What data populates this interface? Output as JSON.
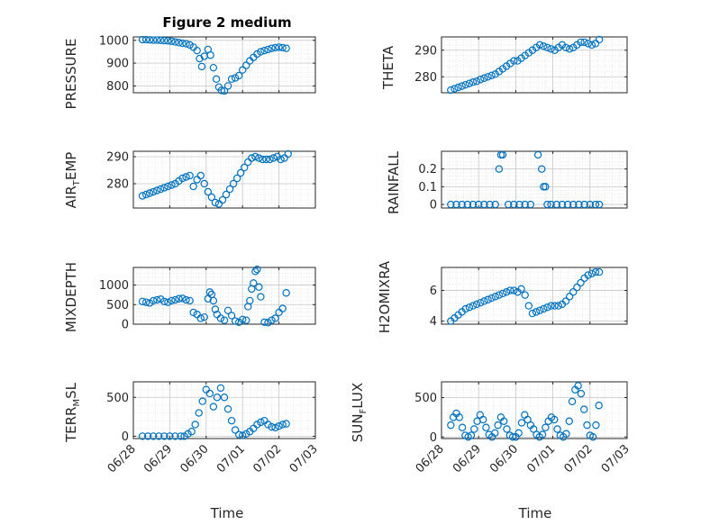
{
  "figure": {
    "title": "Figure 2 medium",
    "xlabel_left": "Time",
    "xlabel_right": "Time",
    "marker_color": "#0072BD"
  },
  "chart_data": [
    {
      "id": "pressure",
      "type": "scatter",
      "title": "Figure 2 medium",
      "ylabel": "PRESSURE",
      "xlim": [
        0,
        5
      ],
      "ylim": [
        770,
        1015
      ],
      "yticks": [
        800,
        900,
        1000
      ],
      "xticks": [
        "06/28",
        "06/29",
        "06/30",
        "07/01",
        "07/02",
        "07/03"
      ],
      "x": [
        0.25,
        0.35,
        0.45,
        0.55,
        0.65,
        0.75,
        0.85,
        0.95,
        1.05,
        1.15,
        1.25,
        1.35,
        1.45,
        1.55,
        1.65,
        1.75,
        1.82,
        1.88,
        1.95,
        2.05,
        2.12,
        2.2,
        2.28,
        2.35,
        2.42,
        2.5,
        2.6,
        2.7,
        2.8,
        2.9,
        3.0,
        3.1,
        3.2,
        3.3,
        3.4,
        3.5,
        3.6,
        3.7,
        3.8,
        3.9,
        4.0,
        4.1,
        4.2
      ],
      "y": [
        1003,
        1003,
        1002,
        1001,
        1001,
        1000,
        999,
        998,
        996,
        993,
        990,
        987,
        985,
        980,
        970,
        955,
        920,
        885,
        930,
        960,
        935,
        880,
        830,
        795,
        780,
        778,
        800,
        830,
        835,
        845,
        870,
        890,
        910,
        925,
        940,
        950,
        955,
        960,
        965,
        968,
        970,
        968,
        965
      ]
    },
    {
      "id": "theta",
      "type": "scatter",
      "ylabel": "THETA",
      "xlim": [
        0,
        5
      ],
      "ylim": [
        274,
        295
      ],
      "yticks": [
        280,
        290
      ],
      "xticks": [
        "06/28",
        "06/29",
        "06/30",
        "07/01",
        "07/02",
        "07/03"
      ],
      "x": [
        0.25,
        0.35,
        0.45,
        0.55,
        0.65,
        0.75,
        0.85,
        0.95,
        1.05,
        1.15,
        1.25,
        1.35,
        1.45,
        1.55,
        1.65,
        1.75,
        1.85,
        1.95,
        2.05,
        2.15,
        2.25,
        2.35,
        2.45,
        2.55,
        2.65,
        2.75,
        2.85,
        2.95,
        3.05,
        3.15,
        3.25,
        3.35,
        3.45,
        3.55,
        3.65,
        3.75,
        3.85,
        3.95,
        4.05,
        4.15,
        4.25
      ],
      "y": [
        275,
        275.5,
        276,
        276.5,
        277,
        277.5,
        278,
        278.3,
        279,
        279.5,
        280,
        280.5,
        281,
        282,
        283,
        284,
        285,
        286,
        286,
        287,
        288,
        289,
        290,
        291,
        292,
        291.5,
        291,
        290.5,
        290,
        291,
        292,
        291,
        290.5,
        291,
        292,
        293,
        293,
        292.5,
        292,
        292.5,
        294
      ]
    },
    {
      "id": "air_temp",
      "type": "scatter",
      "ylabel_main": "AIR",
      "ylabel_sub": "T",
      "ylabel_rest": "EMP",
      "xlim": [
        0,
        5
      ],
      "ylim": [
        271,
        292
      ],
      "yticks": [
        280,
        290
      ],
      "xticks": [
        "06/28",
        "06/29",
        "06/30",
        "07/01",
        "07/02",
        "07/03"
      ],
      "x": [
        0.25,
        0.35,
        0.45,
        0.55,
        0.65,
        0.75,
        0.85,
        0.95,
        1.05,
        1.15,
        1.25,
        1.35,
        1.45,
        1.55,
        1.65,
        1.75,
        1.85,
        1.95,
        2.05,
        2.15,
        2.25,
        2.35,
        2.45,
        2.55,
        2.65,
        2.75,
        2.85,
        2.95,
        3.05,
        3.15,
        3.25,
        3.35,
        3.45,
        3.55,
        3.65,
        3.75,
        3.85,
        3.95,
        4.05,
        4.15,
        4.25
      ],
      "y": [
        275.5,
        276,
        276.5,
        277,
        277.5,
        278,
        278.5,
        279,
        279.5,
        280,
        281,
        282,
        282.5,
        283,
        279,
        281.5,
        283,
        280,
        277,
        275,
        273,
        272.5,
        274,
        276,
        278,
        280,
        282,
        284,
        286,
        288,
        289.5,
        290,
        289.5,
        289,
        289,
        289,
        289.5,
        290,
        289,
        289.5,
        291
      ]
    },
    {
      "id": "rainfall",
      "type": "scatter",
      "ylabel": "RAINFALL",
      "xlim": [
        0,
        5
      ],
      "ylim": [
        -0.02,
        0.3
      ],
      "yticks": [
        0,
        0.1,
        0.2
      ],
      "xticks": [
        "06/28",
        "06/29",
        "06/30",
        "07/01",
        "07/02",
        "07/03"
      ],
      "x": [
        0.25,
        0.4,
        0.55,
        0.7,
        0.85,
        1.0,
        1.15,
        1.3,
        1.45,
        1.55,
        1.6,
        1.65,
        1.8,
        1.95,
        2.1,
        2.25,
        2.4,
        2.6,
        2.7,
        2.75,
        2.8,
        2.85,
        2.95,
        3.1,
        3.25,
        3.4,
        3.55,
        3.7,
        3.85,
        4.0,
        4.15,
        4.25
      ],
      "y": [
        0,
        0,
        0,
        0,
        0,
        0,
        0,
        0,
        0,
        0.2,
        0.28,
        0.28,
        0,
        0,
        0,
        0,
        0,
        0.28,
        0.2,
        0.1,
        0.1,
        0,
        0,
        0,
        0,
        0,
        0,
        0,
        0,
        0,
        0,
        0
      ]
    },
    {
      "id": "mixdepth",
      "type": "scatter",
      "ylabel": "MIXDEPTH",
      "xlim": [
        0,
        5
      ],
      "ylim": [
        0,
        1450
      ],
      "yticks": [
        0,
        500,
        1000
      ],
      "xticks": [
        "06/28",
        "06/29",
        "06/30",
        "07/01",
        "07/02",
        "07/03"
      ],
      "x": [
        0.25,
        0.35,
        0.45,
        0.55,
        0.65,
        0.75,
        0.85,
        0.95,
        1.05,
        1.15,
        1.25,
        1.35,
        1.45,
        1.55,
        1.65,
        1.75,
        1.85,
        1.95,
        2.05,
        2.1,
        2.15,
        2.2,
        2.25,
        2.3,
        2.4,
        2.5,
        2.6,
        2.7,
        2.8,
        2.9,
        3.0,
        3.1,
        3.15,
        3.2,
        3.25,
        3.3,
        3.35,
        3.4,
        3.45,
        3.5,
        3.6,
        3.7,
        3.8,
        3.9,
        4.0,
        4.1,
        4.2
      ],
      "y": [
        580,
        560,
        540,
        600,
        620,
        640,
        580,
        560,
        600,
        620,
        650,
        660,
        620,
        600,
        300,
        250,
        150,
        180,
        650,
        820,
        760,
        600,
        380,
        250,
        150,
        100,
        350,
        220,
        80,
        50,
        120,
        100,
        450,
        600,
        900,
        1050,
        1350,
        1400,
        950,
        700,
        50,
        40,
        100,
        150,
        300,
        400,
        800
      ]
    },
    {
      "id": "h2omixra",
      "type": "scatter",
      "ylabel": "H2OMIXRA",
      "xlim": [
        0,
        5
      ],
      "ylim": [
        3.8,
        7.5
      ],
      "yticks": [
        4,
        6
      ],
      "xticks": [
        "06/28",
        "06/29",
        "06/30",
        "07/01",
        "07/02",
        "07/03"
      ],
      "x": [
        0.25,
        0.35,
        0.45,
        0.55,
        0.65,
        0.75,
        0.85,
        0.95,
        1.05,
        1.15,
        1.25,
        1.35,
        1.45,
        1.55,
        1.65,
        1.75,
        1.85,
        1.95,
        2.05,
        2.15,
        2.25,
        2.35,
        2.45,
        2.55,
        2.65,
        2.75,
        2.85,
        2.95,
        3.05,
        3.15,
        3.25,
        3.35,
        3.45,
        3.55,
        3.65,
        3.75,
        3.85,
        3.95,
        4.05,
        4.15,
        4.25
      ],
      "y": [
        4.0,
        4.2,
        4.4,
        4.6,
        4.8,
        4.9,
        5.0,
        5.1,
        5.2,
        5.3,
        5.4,
        5.5,
        5.6,
        5.7,
        5.8,
        5.9,
        6.0,
        6.0,
        5.9,
        6.1,
        5.7,
        5.0,
        4.5,
        4.6,
        4.7,
        4.8,
        4.9,
        5.0,
        5.0,
        5.0,
        5.1,
        5.3,
        5.6,
        5.9,
        6.2,
        6.5,
        6.8,
        7.0,
        7.1,
        7.2,
        7.2
      ]
    },
    {
      "id": "terr_msl",
      "type": "scatter",
      "ylabel_main": "TERR",
      "ylabel_sub": "M",
      "ylabel_rest": "SL",
      "xlim": [
        0,
        5
      ],
      "ylim": [
        -30,
        700
      ],
      "yticks": [
        0,
        500
      ],
      "xticks": [
        "06/28",
        "06/29",
        "06/30",
        "07/01",
        "07/02",
        "07/03"
      ],
      "x": [
        0.25,
        0.4,
        0.55,
        0.7,
        0.85,
        1.0,
        1.15,
        1.3,
        1.4,
        1.5,
        1.6,
        1.7,
        1.8,
        1.9,
        2.0,
        2.1,
        2.2,
        2.3,
        2.4,
        2.5,
        2.6,
        2.7,
        2.8,
        2.9,
        3.0,
        3.1,
        3.2,
        3.3,
        3.4,
        3.5,
        3.6,
        3.7,
        3.8,
        3.9,
        4.0,
        4.1,
        4.2
      ],
      "y": [
        0,
        0,
        0,
        0,
        0,
        0,
        0,
        0,
        0,
        30,
        60,
        150,
        300,
        450,
        600,
        550,
        380,
        500,
        620,
        500,
        350,
        200,
        80,
        20,
        10,
        30,
        60,
        100,
        150,
        180,
        200,
        150,
        120,
        110,
        130,
        150,
        160
      ]
    },
    {
      "id": "sun_flux",
      "type": "scatter",
      "ylabel_main": "SUN",
      "ylabel_sub": "F",
      "ylabel_rest": "LUX",
      "xlim": [
        0,
        5
      ],
      "ylim": [
        -20,
        700
      ],
      "yticks": [
        0,
        500
      ],
      "xticks": [
        "06/28",
        "06/29",
        "06/30",
        "07/01",
        "07/02",
        "07/03"
      ],
      "x": [
        0.25,
        0.32,
        0.4,
        0.48,
        0.56,
        0.64,
        0.72,
        0.8,
        0.88,
        0.96,
        1.04,
        1.12,
        1.2,
        1.28,
        1.36,
        1.44,
        1.52,
        1.6,
        1.68,
        1.76,
        1.84,
        1.92,
        2.0,
        2.08,
        2.16,
        2.24,
        2.32,
        2.4,
        2.48,
        2.56,
        2.64,
        2.72,
        2.8,
        2.88,
        2.96,
        3.04,
        3.12,
        3.2,
        3.28,
        3.36,
        3.44,
        3.52,
        3.6,
        3.68,
        3.76,
        3.84,
        3.92,
        4.0,
        4.08,
        4.16,
        4.24
      ],
      "y": [
        150,
        250,
        300,
        250,
        120,
        20,
        0,
        20,
        100,
        200,
        280,
        220,
        120,
        30,
        0,
        50,
        150,
        250,
        200,
        100,
        20,
        0,
        0,
        50,
        180,
        280,
        220,
        150,
        100,
        30,
        0,
        30,
        120,
        200,
        250,
        220,
        100,
        20,
        0,
        40,
        200,
        450,
        600,
        650,
        550,
        350,
        150,
        20,
        0,
        150,
        400
      ]
    }
  ]
}
